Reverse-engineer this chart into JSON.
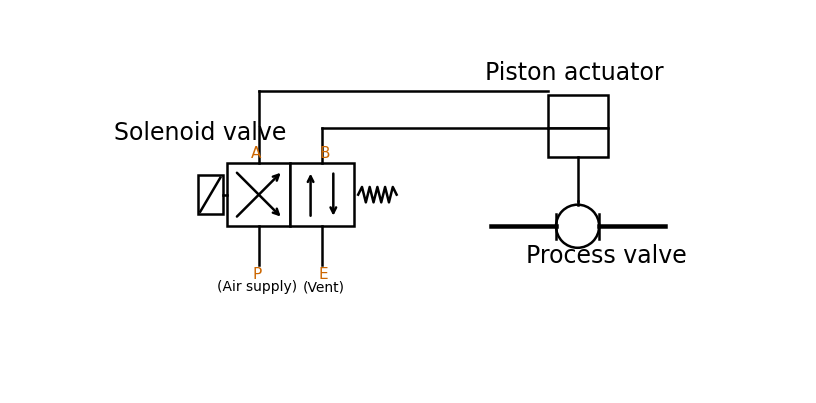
{
  "bg_color": "#ffffff",
  "line_color": "#000000",
  "label_color_orange": "#cc6600",
  "solenoid_valve_label": "Solenoid valve",
  "piston_actuator_label": "Piston actuator",
  "process_valve_label": "Process valve",
  "port_A": "A",
  "port_B": "B",
  "port_P": "P",
  "port_E": "E",
  "air_supply": "(Air supply)",
  "vent": "(Vent)",
  "lw": 1.8,
  "fig_width": 8.16,
  "fig_height": 4.03,
  "dpi": 100,
  "xlim": [
    0,
    8.16
  ],
  "ylim": [
    0,
    4.03
  ]
}
